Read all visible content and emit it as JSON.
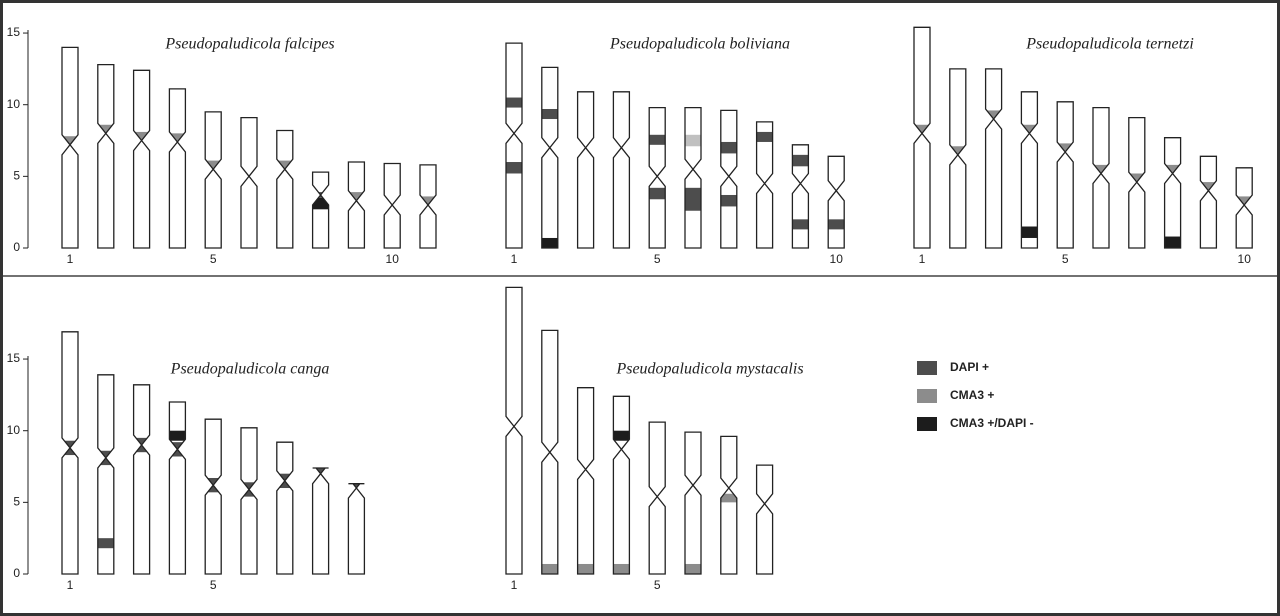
{
  "chart_data": [
    {
      "type": "ideogram",
      "title": "Pseudopaludicola falcipes",
      "ylim": [
        0,
        15
      ],
      "yticks": [
        0,
        5,
        10,
        15
      ],
      "categories": [
        "1",
        null,
        null,
        null,
        "5",
        null,
        null,
        null,
        null,
        "10",
        null
      ],
      "chromosomes": [
        {
          "length": 14.0,
          "centromere": 7.2,
          "bands": [
            {
              "start": 7.2,
              "end": 7.8,
              "color": "#8c8c8c"
            }
          ]
        },
        {
          "length": 12.8,
          "centromere": 8.0,
          "bands": [
            {
              "start": 8.0,
              "end": 8.6,
              "color": "#8c8c8c"
            }
          ]
        },
        {
          "length": 12.4,
          "centromere": 7.5,
          "bands": [
            {
              "start": 7.5,
              "end": 8.1,
              "color": "#8c8c8c"
            }
          ]
        },
        {
          "length": 11.1,
          "centromere": 7.4,
          "bands": [
            {
              "start": 7.4,
              "end": 8.0,
              "color": "#8c8c8c"
            }
          ]
        },
        {
          "length": 9.5,
          "centromere": 5.5,
          "bands": [
            {
              "start": 5.5,
              "end": 6.1,
              "color": "#8c8c8c"
            }
          ]
        },
        {
          "length": 9.1,
          "centromere": 5.0,
          "bands": []
        },
        {
          "length": 8.2,
          "centromere": 5.5,
          "bands": [
            {
              "start": 5.5,
              "end": 6.1,
              "color": "#8c8c8c"
            }
          ]
        },
        {
          "length": 5.3,
          "centromere": 3.7,
          "bands": [
            {
              "start": 2.7,
              "end": 3.5,
              "color": "#1c1c1c"
            },
            {
              "start": 3.5,
              "end": 3.9,
              "color": "#4d4d4d"
            }
          ]
        },
        {
          "length": 6.0,
          "centromere": 3.3,
          "bands": [
            {
              "start": 3.3,
              "end": 3.9,
              "color": "#8c8c8c"
            }
          ]
        },
        {
          "length": 5.9,
          "centromere": 3.0,
          "bands": []
        },
        {
          "length": 5.8,
          "centromere": 3.0,
          "bands": [
            {
              "start": 3.0,
              "end": 3.6,
              "color": "#8c8c8c"
            }
          ]
        }
      ]
    },
    {
      "type": "ideogram",
      "title": "Pseudopaludicola boliviana",
      "ylim": [
        0,
        15
      ],
      "categories": [
        "1",
        null,
        null,
        null,
        "5",
        null,
        null,
        null,
        null,
        "10"
      ],
      "chromosomes": [
        {
          "length": 14.3,
          "centromere": 8.0,
          "bands": [
            {
              "start": 9.8,
              "end": 10.5,
              "color": "#4d4d4d"
            },
            {
              "start": 5.2,
              "end": 6.0,
              "color": "#4d4d4d"
            }
          ]
        },
        {
          "length": 12.6,
          "centromere": 7.0,
          "bands": [
            {
              "start": 9.0,
              "end": 9.7,
              "color": "#4d4d4d"
            },
            {
              "start": 0.0,
              "end": 0.7,
              "color": "#1c1c1c"
            }
          ]
        },
        {
          "length": 10.9,
          "centromere": 7.0,
          "bands": []
        },
        {
          "length": 10.9,
          "centromere": 7.0,
          "bands": []
        },
        {
          "length": 9.8,
          "centromere": 5.0,
          "bands": [
            {
              "start": 7.2,
              "end": 7.9,
              "color": "#4d4d4d"
            },
            {
              "start": 3.4,
              "end": 4.2,
              "color": "#4d4d4d"
            }
          ]
        },
        {
          "length": 9.8,
          "centromere": 5.5,
          "bands": [
            {
              "start": 7.1,
              "end": 7.9,
              "color": "#c0c0c0"
            },
            {
              "start": 2.6,
              "end": 4.2,
              "color": "#4d4d4d"
            }
          ]
        },
        {
          "length": 9.6,
          "centromere": 5.0,
          "bands": [
            {
              "start": 6.6,
              "end": 7.4,
              "color": "#4d4d4d"
            },
            {
              "start": 2.9,
              "end": 3.7,
              "color": "#4d4d4d"
            }
          ]
        },
        {
          "length": 8.8,
          "centromere": 4.5,
          "bands": [
            {
              "start": 7.4,
              "end": 8.1,
              "color": "#4d4d4d"
            }
          ]
        },
        {
          "length": 7.2,
          "centromere": 4.5,
          "bands": [
            {
              "start": 5.7,
              "end": 6.5,
              "color": "#4d4d4d"
            },
            {
              "start": 1.3,
              "end": 2.0,
              "color": "#4d4d4d"
            }
          ]
        },
        {
          "length": 6.4,
          "centromere": 4.0,
          "bands": [
            {
              "start": 1.3,
              "end": 2.0,
              "color": "#4d4d4d"
            }
          ]
        }
      ]
    },
    {
      "type": "ideogram",
      "title": "Pseudopaludicola ternetzi",
      "ylim": [
        0,
        15
      ],
      "categories": [
        "1",
        null,
        null,
        null,
        "5",
        null,
        null,
        null,
        null,
        "10"
      ],
      "chromosomes": [
        {
          "length": 15.4,
          "centromere": 8.0,
          "bands": [
            {
              "start": 8.0,
              "end": 8.6,
              "color": "#8c8c8c"
            }
          ]
        },
        {
          "length": 12.5,
          "centromere": 6.5,
          "bands": [
            {
              "start": 6.5,
              "end": 7.1,
              "color": "#8c8c8c"
            }
          ]
        },
        {
          "length": 12.5,
          "centromere": 9.0,
          "bands": [
            {
              "start": 9.0,
              "end": 9.6,
              "color": "#8c8c8c"
            }
          ]
        },
        {
          "length": 10.9,
          "centromere": 8.0,
          "bands": [
            {
              "start": 8.0,
              "end": 8.6,
              "color": "#8c8c8c"
            },
            {
              "start": 0.7,
              "end": 1.5,
              "color": "#1c1c1c"
            }
          ]
        },
        {
          "length": 10.2,
          "centromere": 6.7,
          "bands": [
            {
              "start": 6.7,
              "end": 7.3,
              "color": "#8c8c8c"
            }
          ]
        },
        {
          "length": 9.8,
          "centromere": 5.2,
          "bands": [
            {
              "start": 5.2,
              "end": 5.8,
              "color": "#8c8c8c"
            }
          ]
        },
        {
          "length": 9.1,
          "centromere": 4.6,
          "bands": [
            {
              "start": 4.6,
              "end": 5.2,
              "color": "#8c8c8c"
            }
          ]
        },
        {
          "length": 7.7,
          "centromere": 5.2,
          "bands": [
            {
              "start": 5.2,
              "end": 5.8,
              "color": "#8c8c8c"
            },
            {
              "start": 0.0,
              "end": 0.8,
              "color": "#1c1c1c"
            }
          ]
        },
        {
          "length": 6.4,
          "centromere": 4.0,
          "bands": [
            {
              "start": 4.0,
              "end": 4.6,
              "color": "#8c8c8c"
            }
          ]
        },
        {
          "length": 5.6,
          "centromere": 3.0,
          "bands": [
            {
              "start": 3.0,
              "end": 3.6,
              "color": "#8c8c8c"
            }
          ]
        }
      ]
    },
    {
      "type": "ideogram",
      "title": "Pseudopaludicola canga",
      "ylim": [
        0,
        15
      ],
      "yticks": [
        0,
        5,
        10,
        15
      ],
      "categories": [
        "1",
        null,
        null,
        null,
        "5",
        null,
        null,
        null,
        null
      ],
      "chromosomes": [
        {
          "length": 16.9,
          "centromere": 8.8,
          "bands": [
            {
              "start": 8.3,
              "end": 9.3,
              "color": "#4d4d4d"
            }
          ]
        },
        {
          "length": 13.9,
          "centromere": 8.1,
          "bands": [
            {
              "start": 7.6,
              "end": 8.6,
              "color": "#4d4d4d"
            },
            {
              "start": 1.8,
              "end": 2.5,
              "color": "#4d4d4d"
            }
          ]
        },
        {
          "length": 13.2,
          "centromere": 9.0,
          "bands": [
            {
              "start": 8.5,
              "end": 9.5,
              "color": "#4d4d4d"
            }
          ]
        },
        {
          "length": 12.0,
          "centromere": 8.7,
          "bands": [
            {
              "start": 8.2,
              "end": 9.2,
              "color": "#4d4d4d"
            },
            {
              "start": 9.3,
              "end": 10.0,
              "color": "#1c1c1c"
            }
          ]
        },
        {
          "length": 10.8,
          "centromere": 6.2,
          "bands": [
            {
              "start": 5.7,
              "end": 6.7,
              "color": "#4d4d4d"
            }
          ]
        },
        {
          "length": 10.2,
          "centromere": 5.9,
          "bands": [
            {
              "start": 5.4,
              "end": 6.4,
              "color": "#4d4d4d"
            }
          ]
        },
        {
          "length": 9.2,
          "centromere": 6.5,
          "bands": [
            {
              "start": 6.0,
              "end": 7.0,
              "color": "#4d4d4d"
            }
          ]
        },
        {
          "length": 7.4,
          "centromere": 7.0,
          "bands": [
            {
              "start": 7.0,
              "end": 7.4,
              "color": "#4d4d4d"
            }
          ]
        },
        {
          "length": 6.3,
          "centromere": 6.0,
          "bands": [
            {
              "start": 6.0,
              "end": 6.3,
              "color": "#4d4d4d"
            }
          ]
        }
      ]
    },
    {
      "type": "ideogram",
      "title": "Pseudopaludicola mystacalis",
      "ylim": [
        0,
        15
      ],
      "categories": [
        "1",
        null,
        null,
        null,
        "5",
        null,
        null,
        null
      ],
      "chromosomes": [
        {
          "length": 20.0,
          "centromere": 10.3,
          "bands": []
        },
        {
          "length": 17.0,
          "centromere": 8.5,
          "bands": [
            {
              "start": 0.0,
              "end": 0.7,
              "color": "#8c8c8c"
            }
          ]
        },
        {
          "length": 13.0,
          "centromere": 7.3,
          "bands": [
            {
              "start": 0.0,
              "end": 0.7,
              "color": "#8c8c8c"
            }
          ]
        },
        {
          "length": 12.4,
          "centromere": 8.7,
          "bands": [
            {
              "start": 9.3,
              "end": 10.0,
              "color": "#1c1c1c"
            },
            {
              "start": 0.0,
              "end": 0.7,
              "color": "#8c8c8c"
            }
          ]
        },
        {
          "length": 10.6,
          "centromere": 5.4,
          "bands": []
        },
        {
          "length": 9.9,
          "centromere": 6.2,
          "bands": [
            {
              "start": 0.0,
              "end": 0.7,
              "color": "#8c8c8c"
            }
          ]
        },
        {
          "length": 9.6,
          "centromere": 6.0,
          "bands": [
            {
              "start": 5.0,
              "end": 5.6,
              "color": "#8c8c8c"
            }
          ]
        },
        {
          "length": 7.6,
          "centromere": 4.9,
          "bands": []
        }
      ]
    }
  ],
  "legend": [
    {
      "name": "DAPI +",
      "color": "#4d4d4d"
    },
    {
      "name": "CMA3 +",
      "color": "#8c8c8c"
    },
    {
      "name": "CMA3 +/DAPI -",
      "color": "#1c1c1c"
    }
  ]
}
